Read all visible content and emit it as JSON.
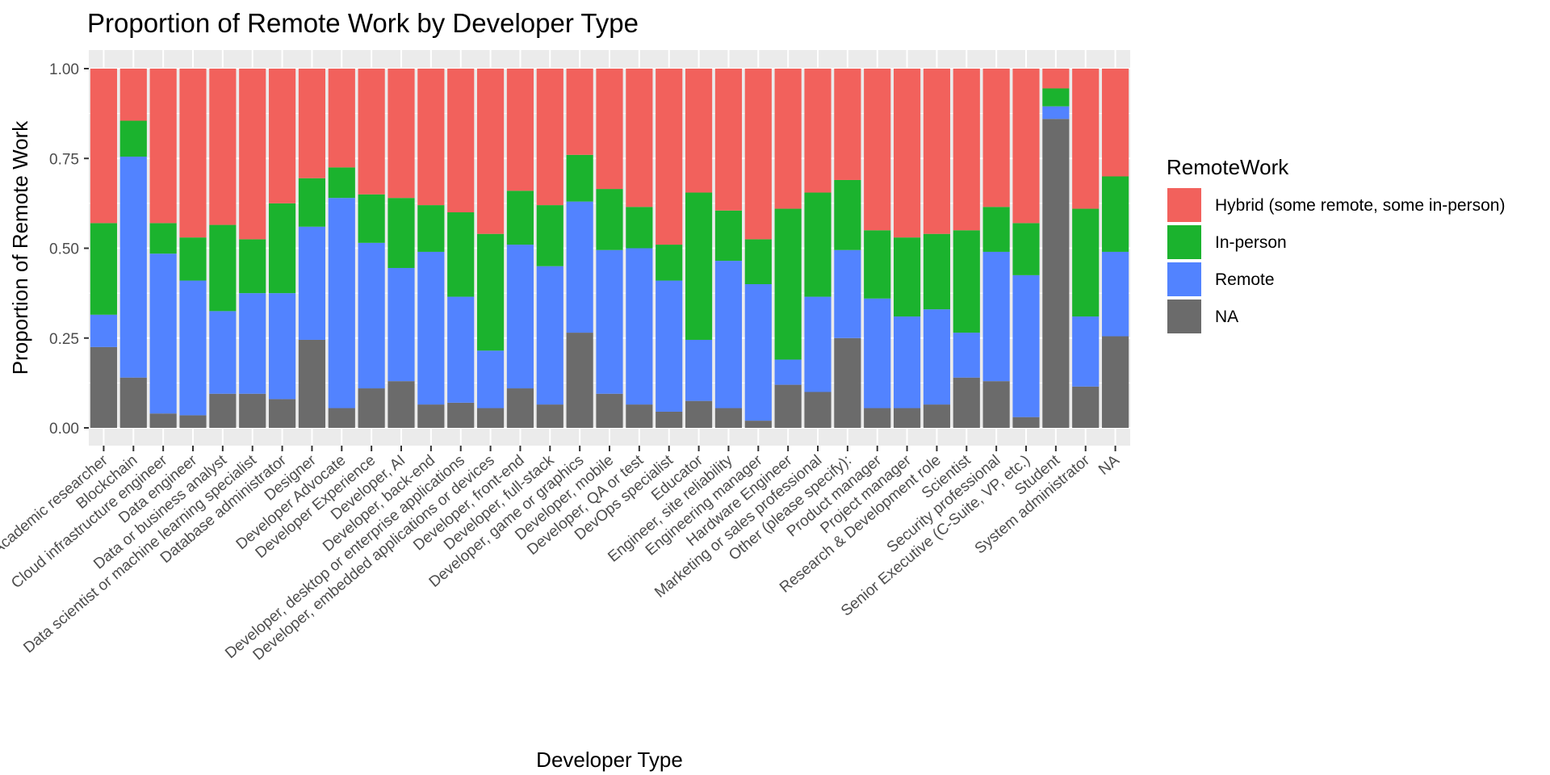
{
  "chart_data": {
    "type": "bar",
    "stacked": true,
    "title": "Proportion of Remote Work by Developer Type",
    "xlabel": "Developer Type",
    "ylabel": "Proportion of Remote Work",
    "ylim": [
      0,
      1
    ],
    "yticks": [
      "0.00",
      "0.25",
      "0.50",
      "0.75",
      "1.00"
    ],
    "grid": true,
    "legend_title": "RemoteWork",
    "legend_position": "right",
    "categories": [
      "Academic researcher",
      "Blockchain",
      "Cloud infrastructure engineer",
      "Data engineer",
      "Data or business analyst",
      "Data scientist or machine learning specialist",
      "Database administrator",
      "Designer",
      "Developer Advocate",
      "Developer Experience",
      "Developer, AI",
      "Developer, back-end",
      "Developer, desktop or enterprise applications",
      "Developer, embedded applications or devices",
      "Developer, front-end",
      "Developer, full-stack",
      "Developer, game or graphics",
      "Developer, mobile",
      "Developer, QA or test",
      "DevOps specialist",
      "Educator",
      "Engineer, site reliability",
      "Engineering manager",
      "Hardware Engineer",
      "Marketing or sales professional",
      "Other (please specify):",
      "Product manager",
      "Project manager",
      "Research & Development role",
      "Scientist",
      "Security professional",
      "Senior Executive (C-Suite, VP, etc.)",
      "Student",
      "System administrator",
      "NA"
    ],
    "series": [
      {
        "name": "NA",
        "color": "#6b6b6b",
        "values": [
          0.225,
          0.14,
          0.04,
          0.035,
          0.095,
          0.095,
          0.08,
          0.245,
          0.055,
          0.11,
          0.13,
          0.065,
          0.07,
          0.055,
          0.11,
          0.065,
          0.265,
          0.095,
          0.065,
          0.045,
          0.075,
          0.055,
          0.02,
          0.12,
          0.1,
          0.25,
          0.055,
          0.055,
          0.065,
          0.14,
          0.13,
          0.03,
          0.86,
          0.115,
          0.255
        ]
      },
      {
        "name": "Remote",
        "color": "#5283ff",
        "values": [
          0.09,
          0.615,
          0.445,
          0.375,
          0.23,
          0.28,
          0.295,
          0.315,
          0.585,
          0.405,
          0.315,
          0.425,
          0.295,
          0.16,
          0.4,
          0.385,
          0.365,
          0.4,
          0.435,
          0.365,
          0.17,
          0.41,
          0.38,
          0.07,
          0.265,
          0.245,
          0.305,
          0.255,
          0.265,
          0.125,
          0.36,
          0.395,
          0.035,
          0.195,
          0.235
        ]
      },
      {
        "name": "In-person",
        "color": "#1bb32e",
        "values": [
          0.255,
          0.1,
          0.085,
          0.12,
          0.24,
          0.15,
          0.25,
          0.135,
          0.085,
          0.135,
          0.195,
          0.13,
          0.235,
          0.325,
          0.15,
          0.17,
          0.13,
          0.17,
          0.115,
          0.1,
          0.41,
          0.14,
          0.125,
          0.42,
          0.29,
          0.195,
          0.19,
          0.22,
          0.21,
          0.285,
          0.125,
          0.145,
          0.05,
          0.3,
          0.21
        ]
      },
      {
        "name": "Hybrid (some remote, some in-person)",
        "color": "#f2615c",
        "values": [
          0.43,
          0.145,
          0.43,
          0.47,
          0.435,
          0.475,
          0.375,
          0.305,
          0.275,
          0.35,
          0.36,
          0.38,
          0.4,
          0.46,
          0.34,
          0.38,
          0.24,
          0.335,
          0.385,
          0.49,
          0.345,
          0.395,
          0.475,
          0.39,
          0.345,
          0.31,
          0.45,
          0.47,
          0.46,
          0.45,
          0.385,
          0.43,
          0.055,
          0.39,
          0.3
        ]
      }
    ],
    "legend_order": [
      "Hybrid (some remote, some in-person)",
      "In-person",
      "Remote",
      "NA"
    ]
  }
}
